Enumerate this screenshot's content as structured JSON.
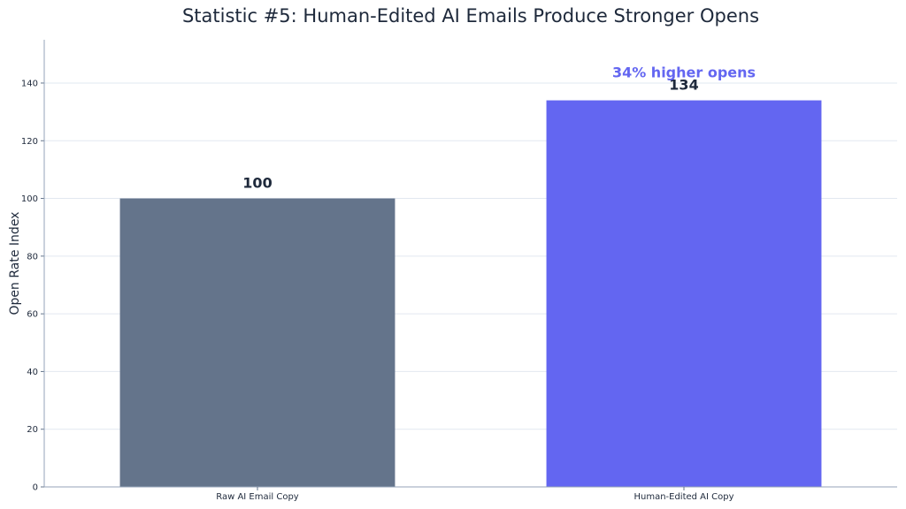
{
  "chart_data": {
    "type": "bar",
    "title": "Statistic #5: Human-Edited AI Emails Produce Stronger Opens",
    "xlabel": "",
    "ylabel": "Open Rate Index",
    "categories": [
      "Raw AI Email Copy",
      "Human-Edited AI Copy"
    ],
    "values": [
      100,
      134
    ],
    "data_labels": [
      "100",
      "134"
    ],
    "bar_colors": [
      "#64748b",
      "#6366f1"
    ],
    "ylim": [
      0,
      155
    ],
    "yticks": [
      0,
      20,
      40,
      60,
      80,
      100,
      120,
      140
    ],
    "grid": true,
    "annotation": {
      "text": "34% higher opens",
      "color": "#6366f1",
      "category": "Human-Edited AI Copy"
    }
  }
}
